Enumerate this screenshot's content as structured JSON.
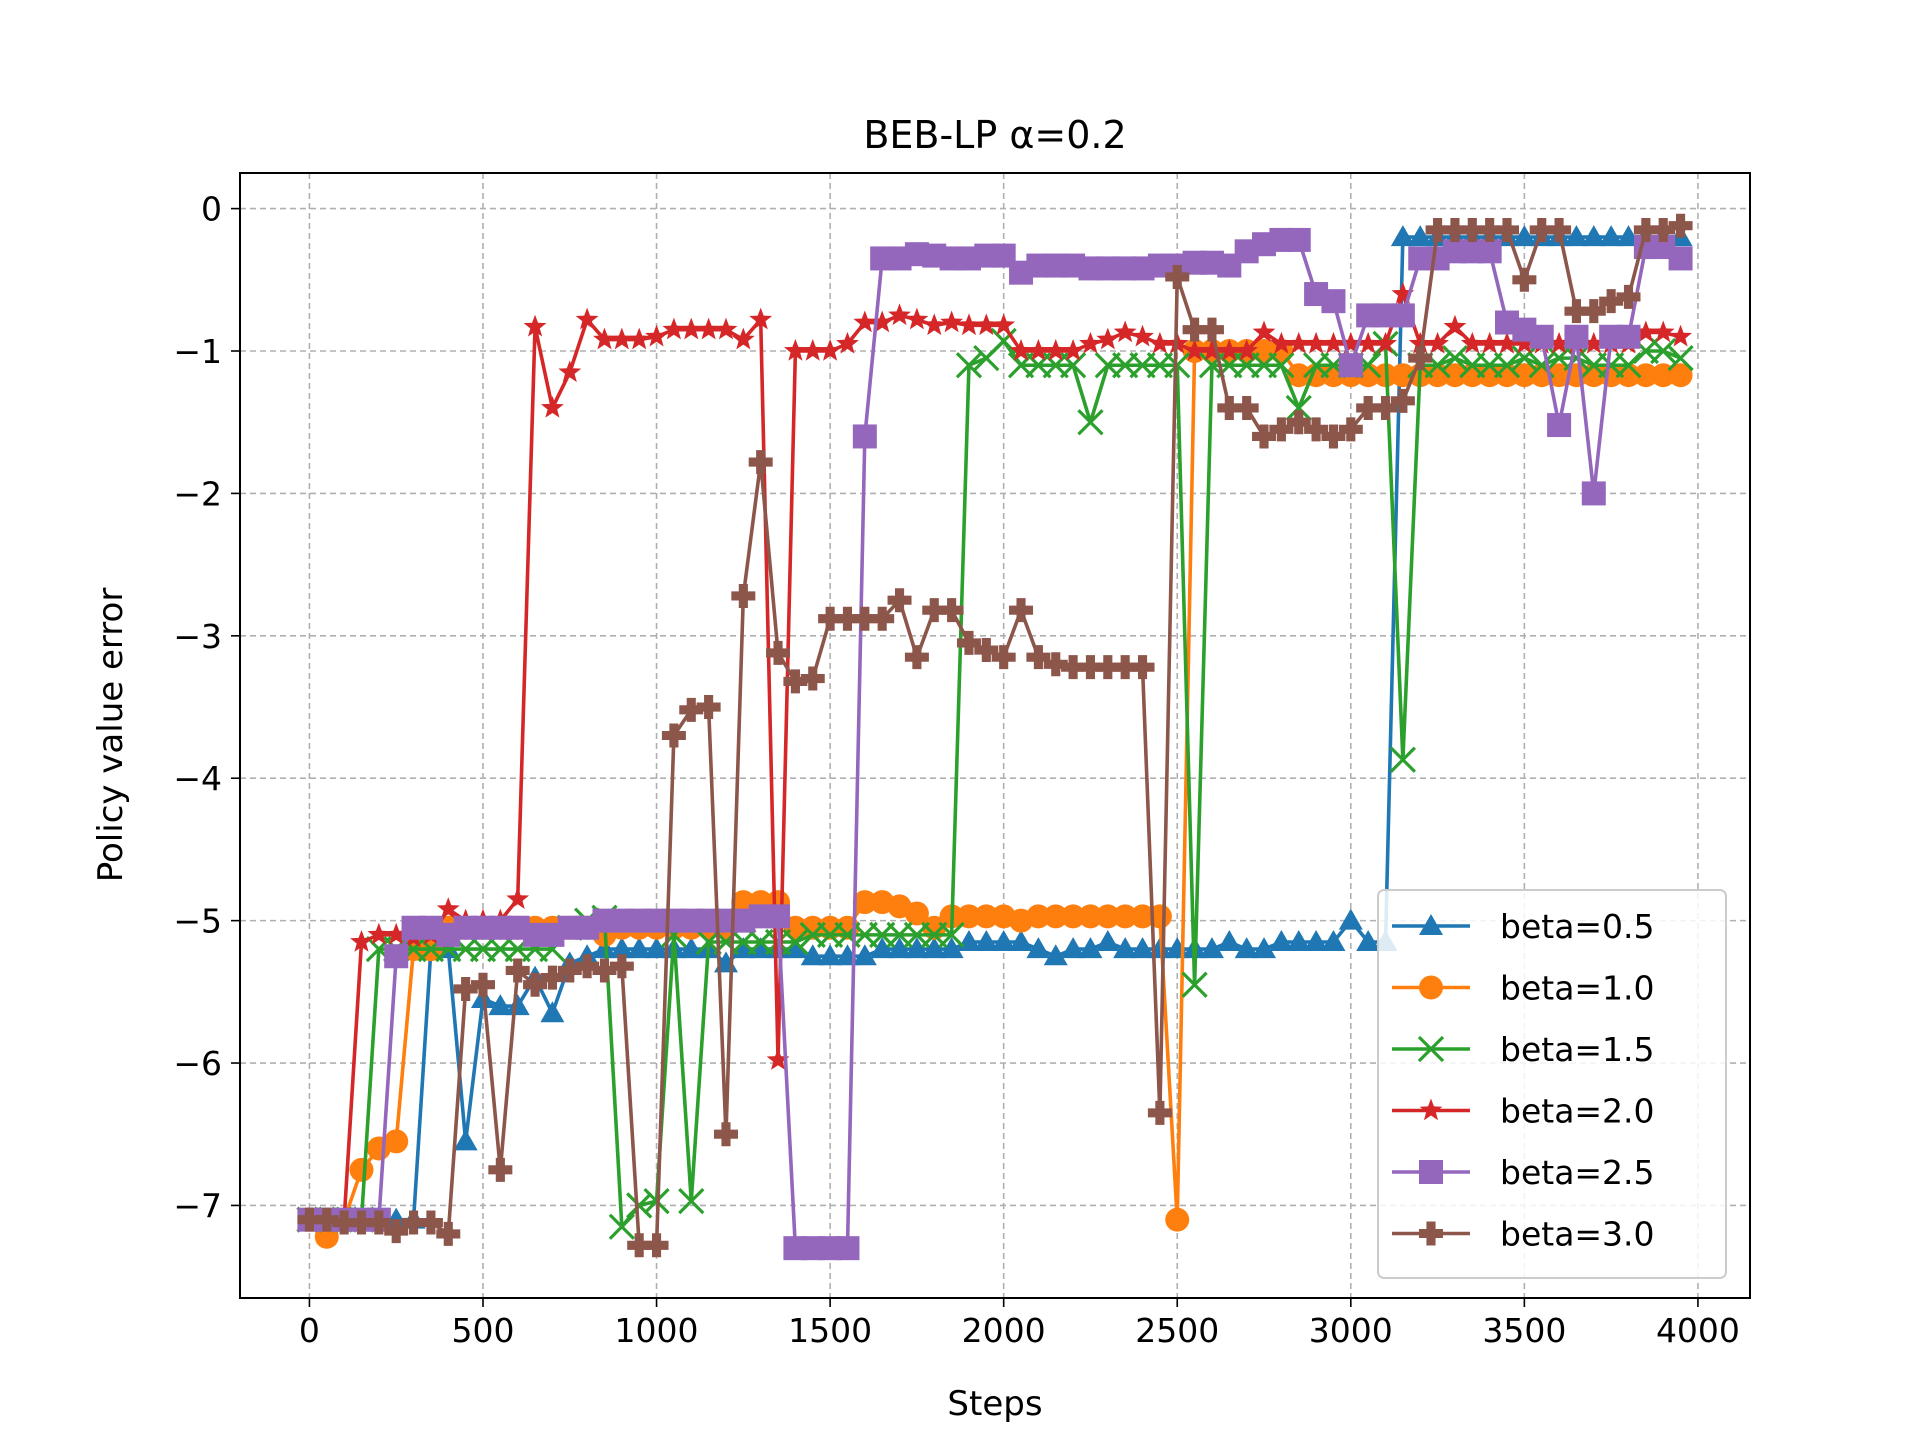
{
  "chart_data": {
    "type": "line",
    "title": "BEB-LP α=0.2",
    "xlabel": "Steps",
    "ylabel": "Policy value error",
    "xlim": [
      -200,
      4150
    ],
    "ylim": [
      -7.65,
      0.25
    ],
    "xticks": [
      0,
      500,
      1000,
      1500,
      2000,
      2500,
      3000,
      3500,
      4000
    ],
    "yticks": [
      0,
      -1,
      -2,
      -3,
      -4,
      -5,
      -6,
      -7
    ],
    "xtick_labels": [
      "0",
      "500",
      "1000",
      "1500",
      "2000",
      "2500",
      "3000",
      "3500",
      "4000"
    ],
    "ytick_labels": [
      "0",
      "−1",
      "−2",
      "−3",
      "−4",
      "−5",
      "−6",
      "−7"
    ],
    "grid": true,
    "legend_position": "lower-right",
    "x": [
      0,
      50,
      100,
      150,
      200,
      250,
      300,
      350,
      400,
      450,
      500,
      550,
      600,
      650,
      700,
      750,
      800,
      850,
      900,
      950,
      1000,
      1050,
      1100,
      1150,
      1200,
      1250,
      1300,
      1350,
      1400,
      1450,
      1500,
      1550,
      1600,
      1650,
      1700,
      1750,
      1800,
      1850,
      1900,
      1950,
      2000,
      2050,
      2100,
      2150,
      2200,
      2250,
      2300,
      2350,
      2400,
      2450,
      2500,
      2550,
      2600,
      2650,
      2700,
      2750,
      2800,
      2850,
      2900,
      2950,
      3000,
      3050,
      3100,
      3150,
      3200,
      3250,
      3300,
      3350,
      3400,
      3450,
      3500,
      3550,
      3600,
      3650,
      3700,
      3750,
      3800,
      3850,
      3900,
      3950
    ],
    "series": [
      {
        "name": "beta=0.5",
        "color": "#1f77b4",
        "marker": "triangle",
        "values": [
          -7.1,
          -7.1,
          -7.1,
          -7.1,
          -7.1,
          -7.1,
          -7.1,
          -5.2,
          -5.2,
          -6.55,
          -5.55,
          -5.6,
          -5.6,
          -5.4,
          -5.65,
          -5.3,
          -5.25,
          -5.2,
          -5.2,
          -5.2,
          -5.2,
          -5.2,
          -5.2,
          -5.2,
          -5.3,
          -5.2,
          -5.2,
          -5.2,
          -5.2,
          -5.25,
          -5.25,
          -5.25,
          -5.25,
          -5.2,
          -5.2,
          -5.2,
          -5.2,
          -5.2,
          -5.15,
          -5.15,
          -5.15,
          -5.15,
          -5.2,
          -5.25,
          -5.2,
          -5.2,
          -5.15,
          -5.2,
          -5.2,
          -5.2,
          -5.2,
          -5.2,
          -5.2,
          -5.15,
          -5.2,
          -5.2,
          -5.15,
          -5.15,
          -5.15,
          -5.15,
          -5.0,
          -5.15,
          -5.15,
          -0.2,
          -0.2,
          -0.2,
          -0.2,
          -0.2,
          -0.2,
          -0.2,
          -0.2,
          -0.2,
          -0.2,
          -0.2,
          -0.2,
          -0.2,
          -0.2,
          -0.2,
          -0.2,
          -0.2
        ]
      },
      {
        "name": "beta=1.0",
        "color": "#ff7f0e",
        "marker": "circle",
        "values": [
          -7.1,
          -7.22,
          -7.1,
          -6.75,
          -6.6,
          -6.55,
          -5.2,
          -5.2,
          -5.05,
          -5.05,
          -5.05,
          -5.05,
          -5.05,
          -5.05,
          -5.05,
          -5.05,
          -5.05,
          -5.1,
          -5.05,
          -5.05,
          -5.05,
          -5.05,
          -5.05,
          -5.05,
          -5.05,
          -4.87,
          -4.87,
          -4.87,
          -5.05,
          -5.05,
          -5.05,
          -5.05,
          -4.87,
          -4.87,
          -4.9,
          -4.95,
          -5.05,
          -4.97,
          -4.97,
          -4.97,
          -4.97,
          -5.0,
          -4.97,
          -4.97,
          -4.97,
          -4.97,
          -4.97,
          -4.97,
          -4.97,
          -4.97,
          -7.1,
          -1.0,
          -1.0,
          -1.0,
          -1.0,
          -1.0,
          -1.0,
          -1.17,
          -1.17,
          -1.17,
          -1.17,
          -1.17,
          -1.17,
          -1.17,
          -1.17,
          -1.17,
          -1.17,
          -1.17,
          -1.17,
          -1.17,
          -1.17,
          -1.17,
          -1.17,
          -1.17,
          -1.17,
          -1.17,
          -1.17,
          -1.17,
          -1.17,
          -1.17
        ]
      },
      {
        "name": "beta=1.5",
        "color": "#2ca02c",
        "marker": "x",
        "values": [
          -7.1,
          -7.1,
          -7.1,
          -7.1,
          -5.2,
          -5.2,
          -5.2,
          -5.2,
          -5.2,
          -5.2,
          -5.2,
          -5.2,
          -5.2,
          -5.2,
          -5.2,
          -5.05,
          -5.0,
          -4.98,
          -7.15,
          -7.0,
          -6.97,
          -5.1,
          -6.97,
          -5.15,
          -5.15,
          -5.15,
          -5.15,
          -5.15,
          -5.15,
          -5.1,
          -5.1,
          -5.1,
          -5.1,
          -5.1,
          -5.1,
          -5.1,
          -5.1,
          -5.1,
          -1.1,
          -1.05,
          -0.93,
          -1.1,
          -1.1,
          -1.1,
          -1.1,
          -1.5,
          -1.1,
          -1.1,
          -1.1,
          -1.1,
          -1.1,
          -5.45,
          -1.1,
          -1.1,
          -1.1,
          -1.1,
          -1.1,
          -1.4,
          -1.1,
          -1.1,
          -1.1,
          -1.1,
          -0.95,
          -3.87,
          -1.1,
          -1.1,
          -1.05,
          -1.1,
          -1.1,
          -1.1,
          -1.05,
          -1.1,
          -1.05,
          -1.05,
          -1.1,
          -1.1,
          -1.1,
          -1.0,
          -1.0,
          -1.05
        ]
      },
      {
        "name": "beta=2.0",
        "color": "#d62728",
        "marker": "star",
        "values": [
          -7.1,
          -7.1,
          -7.1,
          -5.15,
          -5.1,
          -5.1,
          -5.12,
          -5.1,
          -4.92,
          -5.0,
          -5.0,
          -5.0,
          -4.85,
          -0.83,
          -1.4,
          -1.15,
          -0.78,
          -0.92,
          -0.92,
          -0.92,
          -0.9,
          -0.85,
          -0.85,
          -0.85,
          -0.85,
          -0.92,
          -0.78,
          -5.98,
          -1.0,
          -1.0,
          -1.0,
          -0.95,
          -0.8,
          -0.8,
          -0.75,
          -0.78,
          -0.82,
          -0.8,
          -0.82,
          -0.82,
          -0.82,
          -1.0,
          -1.0,
          -1.0,
          -1.0,
          -0.95,
          -0.92,
          -0.87,
          -0.9,
          -0.95,
          -0.95,
          -1.0,
          -1.0,
          -1.0,
          -1.0,
          -0.87,
          -0.95,
          -0.95,
          -0.95,
          -0.95,
          -0.95,
          -0.95,
          -0.95,
          -0.6,
          -0.95,
          -0.95,
          -0.83,
          -0.95,
          -0.95,
          -0.95,
          -0.95,
          -0.95,
          -0.95,
          -0.95,
          -0.95,
          -0.95,
          -0.95,
          -0.87,
          -0.87,
          -0.9
        ]
      },
      {
        "name": "beta=2.5",
        "color": "#9467bd",
        "marker": "square",
        "values": [
          -7.1,
          -7.1,
          -7.1,
          -7.1,
          -7.1,
          -5.25,
          -5.05,
          -5.05,
          -5.1,
          -5.05,
          -5.05,
          -5.05,
          -5.05,
          -5.1,
          -5.1,
          -5.05,
          -5.05,
          -5.0,
          -5.0,
          -5.0,
          -5.0,
          -5.0,
          -5.0,
          -5.0,
          -5.0,
          -5.0,
          -4.97,
          -4.97,
          -7.3,
          -7.3,
          -7.3,
          -7.3,
          -1.6,
          -0.35,
          -0.35,
          -0.32,
          -0.33,
          -0.35,
          -0.35,
          -0.33,
          -0.33,
          -0.45,
          -0.4,
          -0.4,
          -0.4,
          -0.42,
          -0.42,
          -0.42,
          -0.42,
          -0.4,
          -0.4,
          -0.38,
          -0.38,
          -0.4,
          -0.3,
          -0.25,
          -0.22,
          -0.22,
          -0.6,
          -0.65,
          -1.1,
          -0.75,
          -0.75,
          -0.75,
          -0.35,
          -0.35,
          -0.3,
          -0.3,
          -0.3,
          -0.8,
          -0.85,
          -0.9,
          -1.52,
          -0.9,
          -2.0,
          -0.9,
          -0.9,
          -0.27,
          -0.27,
          -0.35
        ]
      },
      {
        "name": "beta=3.0",
        "color": "#8c564b",
        "marker": "plus",
        "values": [
          -7.1,
          -7.1,
          -7.12,
          -7.12,
          -7.12,
          -7.18,
          -7.12,
          -7.12,
          -7.2,
          -5.48,
          -5.45,
          -6.75,
          -5.35,
          -5.45,
          -5.4,
          -5.35,
          -5.32,
          -5.35,
          -5.32,
          -7.28,
          -7.28,
          -3.7,
          -3.52,
          -3.5,
          -6.5,
          -2.72,
          -1.78,
          -3.12,
          -3.32,
          -3.3,
          -2.88,
          -2.88,
          -2.88,
          -2.88,
          -2.75,
          -3.15,
          -2.82,
          -2.82,
          -3.05,
          -3.1,
          -3.15,
          -2.82,
          -3.15,
          -3.2,
          -3.22,
          -3.22,
          -3.22,
          -3.22,
          -3.22,
          -6.35,
          -0.48,
          -0.85,
          -0.85,
          -1.4,
          -1.4,
          -1.6,
          -1.55,
          -1.5,
          -1.55,
          -1.6,
          -1.55,
          -1.4,
          -1.4,
          -1.35,
          -1.05,
          -0.15,
          -0.15,
          -0.15,
          -0.15,
          -0.15,
          -0.5,
          -0.15,
          -0.15,
          -0.72,
          -0.72,
          -0.65,
          -0.62,
          -0.15,
          -0.15,
          -0.12
        ]
      }
    ]
  }
}
